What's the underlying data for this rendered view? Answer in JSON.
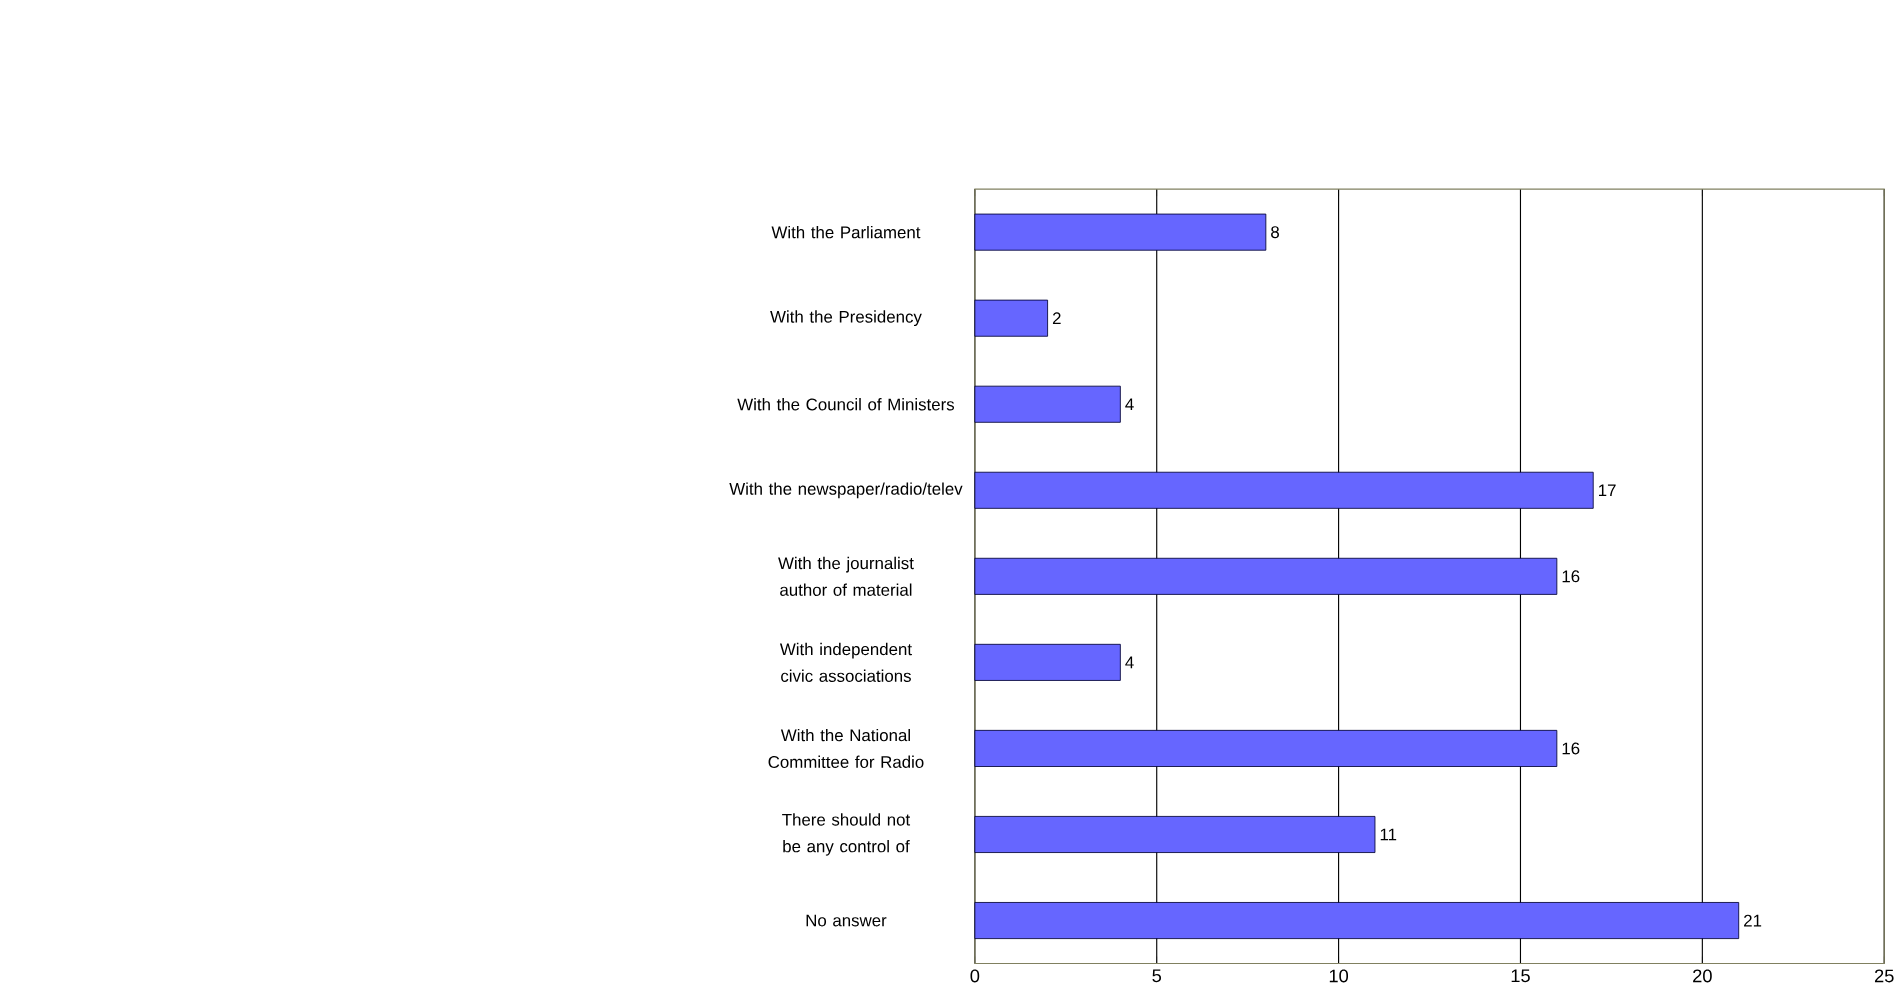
{
  "chart_data": {
    "type": "bar",
    "orientation": "horizontal",
    "categories": [
      "With the Parliament",
      "With the Presidency",
      "With the Council of Ministers",
      "With the newspaper/radio/telev",
      "With the journalist author of material",
      "With independent civic associations",
      "With the National Committee for Radio",
      "There should not be any control of",
      "No answer"
    ],
    "values": [
      8,
      2,
      4,
      17,
      16,
      4,
      16,
      11,
      21
    ],
    "color": "#6666ff",
    "xlim": [
      0,
      25
    ],
    "xticks": [
      0,
      5,
      10,
      15,
      20,
      25
    ],
    "grid": "x",
    "data_labels": true
  }
}
